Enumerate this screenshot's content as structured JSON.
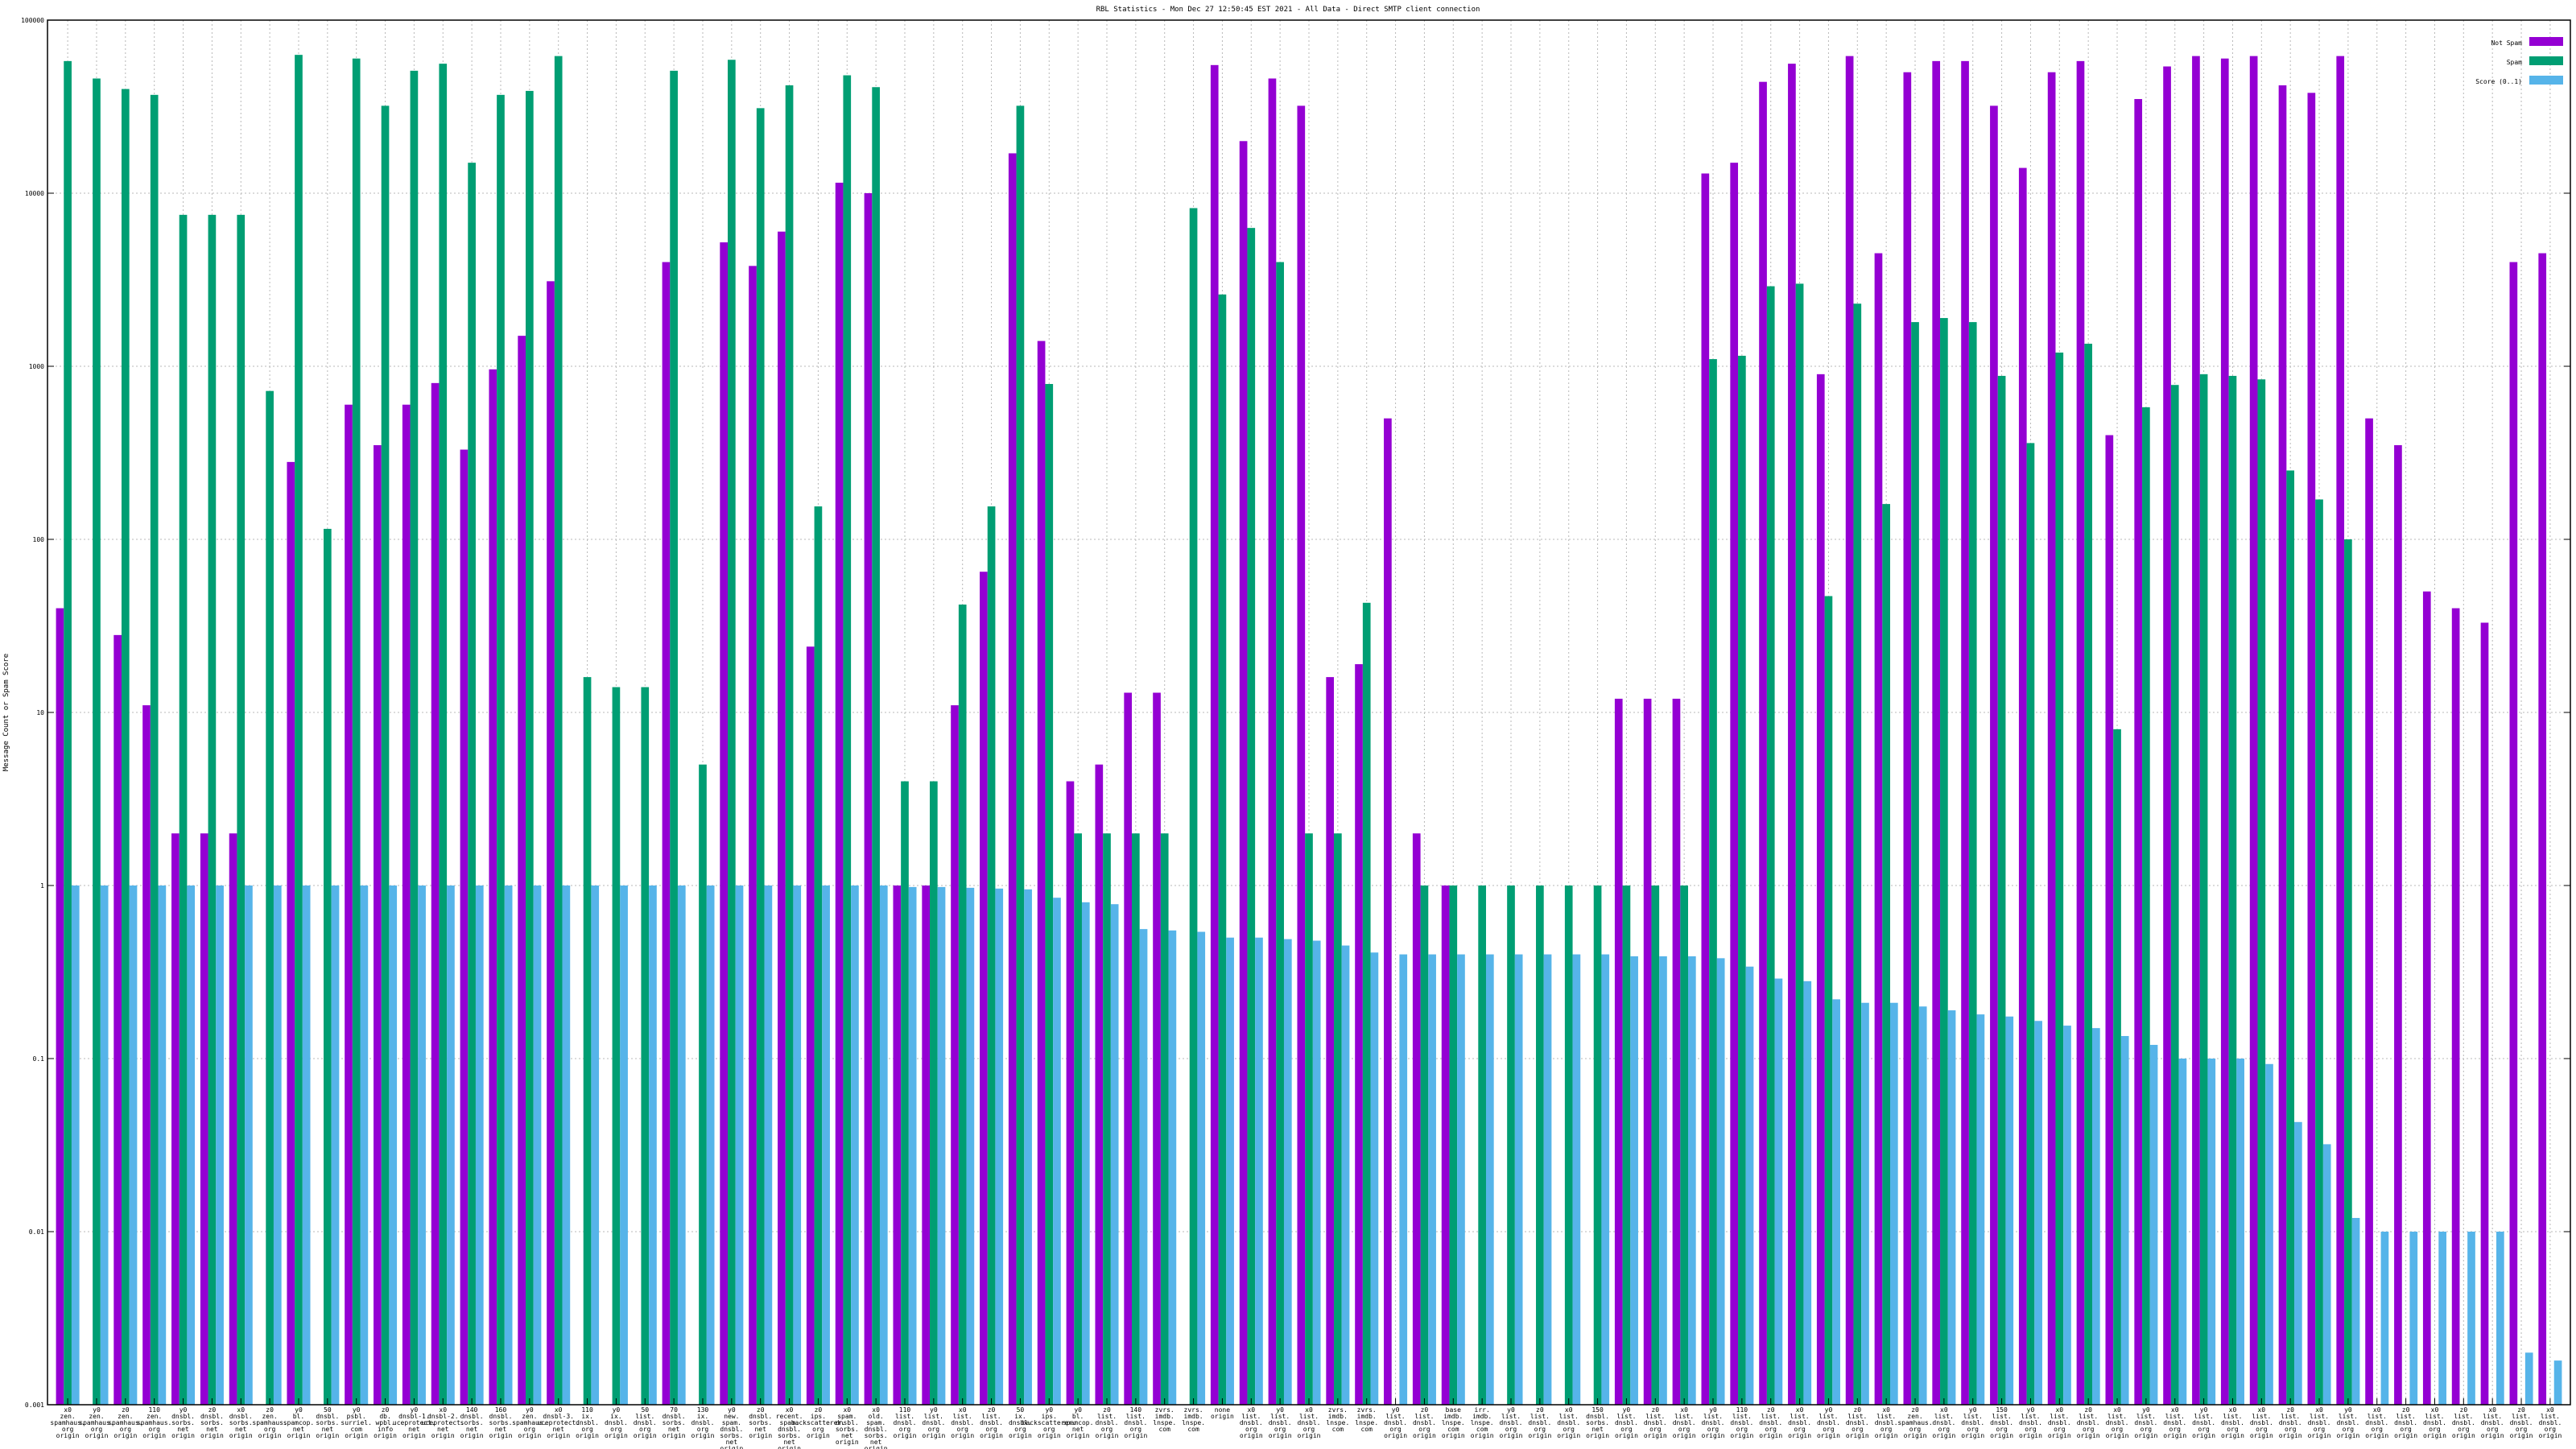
{
  "chart_data": {
    "type": "bar",
    "title": "RBL Statistics - Mon Dec 27 12:50:45 EST 2021 - All Data - Direct SMTP client connection",
    "ylabel": "Message Count or Spam Score",
    "xlabel": "",
    "y_scale": "log",
    "ylim": [
      0.001,
      100000
    ],
    "y_ticks": [
      "0.001",
      "0.01",
      "0.1",
      "1",
      "10",
      "100",
      "1000",
      "10000",
      "100000"
    ],
    "grid": true,
    "legend_position": "top-right",
    "categories": [
      [
        "x0",
        "zen.",
        "spamhaus.",
        "org",
        "origin"
      ],
      [
        "y0",
        "zen.",
        "spamhaus.",
        "org",
        "origin"
      ],
      [
        "z0",
        "zen.",
        "spamhaus.",
        "org",
        "origin"
      ],
      [
        "110",
        "zen.",
        "spamhaus.",
        "org",
        "origin"
      ],
      [
        "y0",
        "dnsbl.",
        "sorbs.",
        "net",
        "origin"
      ],
      [
        "z0",
        "dnsbl.",
        "sorbs.",
        "net",
        "origin"
      ],
      [
        "x0",
        "dnsbl.",
        "sorbs.",
        "net",
        "origin"
      ],
      [
        "z0",
        "zen.",
        "spamhaus.",
        "org",
        "origin"
      ],
      [
        "y0",
        "bl.",
        "spamcop.",
        "net",
        "origin"
      ],
      [
        "50",
        "dnsbl.",
        "sorbs.",
        "net",
        "origin"
      ],
      [
        "y0",
        "psbl.",
        "surriel.",
        "com",
        "origin"
      ],
      [
        "z0",
        "db.",
        "wpbl.",
        "info",
        "origin"
      ],
      [
        "y0",
        "dnsbl-1.",
        "uceprotect.",
        "net",
        "origin"
      ],
      [
        "x0",
        "dnsbl-2.",
        "uceprotect.",
        "net",
        "origin"
      ],
      [
        "140",
        "dnsbl.",
        "sorbs.",
        "net",
        "origin"
      ],
      [
        "160",
        "dnsbl.",
        "sorbs.",
        "net",
        "origin"
      ],
      [
        "y0",
        "zen.",
        "spamhaus.",
        "org",
        "origin"
      ],
      [
        "x0",
        "dnsbl-3.",
        "uceprotect.",
        "net",
        "origin"
      ],
      [
        "110",
        "ix.",
        "dnsbl.",
        "org",
        "origin"
      ],
      [
        "y0",
        "ix.",
        "dnsbl.",
        "org",
        "origin"
      ],
      [
        "50",
        "list.",
        "dnsbl.",
        "org",
        "origin"
      ],
      [
        "70",
        "dnsbl.",
        "sorbs.",
        "net",
        "origin"
      ],
      [
        "130",
        "ix.",
        "dnsbl.",
        "org",
        "origin"
      ],
      [
        "y0",
        "new.",
        "spam.",
        "dnsbl.",
        "sorbs.",
        "net",
        "origin"
      ],
      [
        "z0",
        "dnsbl.",
        "sorbs.",
        "net",
        "origin"
      ],
      [
        "x0",
        "recent.",
        "spam.",
        "dnsbl.",
        "sorbs.",
        "net",
        "origin"
      ],
      [
        "z0",
        "ips.",
        "backscatterer.",
        "org",
        "origin"
      ],
      [
        "x0",
        "spam.",
        "dnsbl.",
        "sorbs.",
        "net",
        "origin"
      ],
      [
        "x0",
        "old.",
        "spam.",
        "dnsbl.",
        "sorbs.",
        "net",
        "origin"
      ],
      [
        "110",
        "list.",
        "dnsbl.",
        "org",
        "origin"
      ],
      [
        "y0",
        "list.",
        "dnsbl.",
        "org",
        "origin"
      ],
      [
        "x0",
        "list.",
        "dnsbl.",
        "org",
        "origin"
      ],
      [
        "z0",
        "list.",
        "dnsbl.",
        "org",
        "origin"
      ],
      [
        "50",
        "ix.",
        "dnsbl.",
        "org",
        "origin"
      ],
      [
        "y0",
        "ips.",
        "backscatterer.",
        "org",
        "origin"
      ],
      [
        "y0",
        "bl.",
        "spamcop.",
        "net",
        "origin"
      ],
      [
        "z0",
        "list.",
        "dnsbl.",
        "org",
        "origin"
      ],
      [
        "140",
        "list.",
        "dnsbl.",
        "org",
        "origin"
      ],
      [
        "zvrs.",
        "imdb.",
        "lnspe.",
        "com"
      ],
      [
        "zvrs.",
        "imdb.",
        "lnspe.",
        "com"
      ],
      [
        "none",
        "origin"
      ],
      [
        "x0",
        "list.",
        "dnsbl.",
        "org",
        "origin"
      ],
      [
        "y0",
        "list.",
        "dnsbl.",
        "org",
        "origin"
      ],
      [
        "x0",
        "list.",
        "dnsbl.",
        "org",
        "origin"
      ],
      [
        "zvrs.",
        "imdb.",
        "lnspe.",
        "com"
      ],
      [
        "zvrs.",
        "imdb.",
        "lnspe.",
        "com"
      ],
      [
        "y0",
        "list.",
        "dnsbl.",
        "org",
        "origin"
      ],
      [
        "z0",
        "list.",
        "dnsbl.",
        "org",
        "origin"
      ],
      [
        "base",
        "imdb.",
        "lnspe.",
        "com",
        "origin"
      ],
      [
        "irr.",
        "imdb.",
        "lnspe.",
        "com",
        "origin"
      ],
      [
        "y0",
        "list.",
        "dnsbl.",
        "org",
        "origin"
      ],
      [
        "z0",
        "list.",
        "dnsbl.",
        "org",
        "origin"
      ],
      [
        "x0",
        "list.",
        "dnsbl.",
        "org",
        "origin"
      ],
      [
        "150",
        "dnsbl.",
        "sorbs.",
        "net",
        "origin"
      ],
      [
        "y0",
        "list.",
        "dnsbl.",
        "org",
        "origin"
      ],
      [
        "z0",
        "list.",
        "dnsbl.",
        "org",
        "origin"
      ],
      [
        "x0",
        "list.",
        "dnsbl.",
        "org",
        "origin"
      ],
      [
        "y0",
        "list.",
        "dnsbl.",
        "org",
        "origin"
      ],
      [
        "110",
        "list.",
        "dnsbl.",
        "org",
        "origin"
      ],
      [
        "z0",
        "list.",
        "dnsbl.",
        "org",
        "origin"
      ],
      [
        "x0",
        "list.",
        "dnsbl.",
        "org",
        "origin"
      ],
      [
        "y0",
        "list.",
        "dnsbl.",
        "org",
        "origin"
      ],
      [
        "z0",
        "list.",
        "dnsbl.",
        "org",
        "origin"
      ],
      [
        "x0",
        "list.",
        "dnsbl.",
        "org",
        "origin"
      ],
      [
        "z0",
        "zen.",
        "spamhaus.",
        "org",
        "origin"
      ],
      [
        "x0",
        "list.",
        "dnsbl.",
        "org",
        "origin"
      ],
      [
        "y0",
        "list.",
        "dnsbl.",
        "org",
        "origin"
      ],
      [
        "150",
        "list.",
        "dnsbl.",
        "org",
        "origin"
      ],
      [
        "y0",
        "list.",
        "dnsbl.",
        "org",
        "origin"
      ],
      [
        "x0",
        "list.",
        "dnsbl.",
        "org",
        "origin"
      ],
      [
        "z0",
        "list.",
        "dnsbl.",
        "org",
        "origin"
      ],
      [
        "x0",
        "list.",
        "dnsbl.",
        "org",
        "origin"
      ],
      [
        "y0",
        "list.",
        "dnsbl.",
        "org",
        "origin"
      ],
      [
        "x0",
        "list.",
        "dnsbl.",
        "org",
        "origin"
      ],
      [
        "y0",
        "list.",
        "dnsbl.",
        "org",
        "origin"
      ],
      [
        "x0",
        "list.",
        "dnsbl.",
        "org",
        "origin"
      ],
      [
        "x0",
        "list.",
        "dnsbl.",
        "org",
        "origin"
      ],
      [
        "z0",
        "list.",
        "dnsbl.",
        "org",
        "origin"
      ],
      [
        "x0",
        "list.",
        "dnsbl.",
        "org",
        "origin"
      ],
      [
        "y0",
        "list.",
        "dnsbl.",
        "org",
        "origin"
      ],
      [
        "x0",
        "list.",
        "dnsbl.",
        "org",
        "origin"
      ],
      [
        "z0",
        "list.",
        "dnsbl.",
        "org",
        "origin"
      ],
      [
        "x0",
        "list.",
        "dnsbl.",
        "org",
        "origin"
      ],
      [
        "z0",
        "list.",
        "dnsbl.",
        "org",
        "origin"
      ],
      [
        "x0",
        "list.",
        "dnsbl.",
        "org",
        "origin"
      ],
      [
        "z0",
        "list.",
        "dnsbl.",
        "org",
        "origin"
      ],
      [
        "x0",
        "list.",
        "dnsbl.",
        "org",
        "origin"
      ]
    ],
    "series": [
      {
        "name": "Not Spam",
        "color": "#9400d3",
        "values": [
          40,
          0,
          28,
          11,
          2,
          2,
          2,
          0,
          280,
          0,
          600,
          350,
          600,
          800,
          330,
          960,
          1500,
          3100,
          0,
          0,
          0,
          4000,
          0,
          5200,
          3800,
          6000,
          24,
          11500,
          10000,
          1,
          1,
          11,
          65,
          17000,
          1400,
          4,
          5,
          13,
          13,
          0,
          55000,
          20000,
          46000,
          32000,
          16,
          19,
          500,
          2,
          1,
          0,
          0,
          0,
          0,
          0,
          12,
          12,
          12,
          13000,
          15000,
          44000,
          56000,
          900,
          62000,
          4500,
          50000,
          58000,
          58000,
          32000,
          14000,
          50000,
          58000,
          400,
          35000,
          54000,
          62000,
          60000,
          62000,
          42000,
          38000,
          62000,
          500,
          350,
          50,
          40,
          33,
          4000,
          4500
        ]
      },
      {
        "name": "Spam",
        "color": "#009e73",
        "values": [
          58000,
          46000,
          40000,
          37000,
          7500,
          7500,
          7500,
          720,
          63000,
          115,
          60000,
          32000,
          51000,
          56000,
          15000,
          37000,
          39000,
          62000,
          16,
          14,
          14,
          51000,
          5,
          59000,
          31000,
          42000,
          155,
          48000,
          41000,
          4,
          4,
          42,
          155,
          32000,
          790,
          2,
          2,
          2,
          2,
          8200,
          2600,
          6300,
          4000,
          2,
          2,
          43,
          0,
          1,
          1,
          1,
          1,
          1,
          1,
          1,
          1,
          1,
          1,
          1100,
          1150,
          2900,
          3000,
          47,
          2300,
          160,
          1800,
          1900,
          1800,
          880,
          360,
          1200,
          1350,
          8,
          580,
          780,
          900,
          880,
          840,
          250,
          170,
          100,
          0,
          0,
          0,
          0,
          0,
          0,
          0
        ]
      },
      {
        "name": "Score (0..1)",
        "color": "#56b4e9",
        "values": [
          1,
          1,
          1,
          1,
          1,
          1,
          1,
          1,
          1,
          1,
          1,
          1,
          1,
          1,
          1,
          1,
          1,
          1,
          1,
          1,
          1,
          1,
          1,
          1,
          1,
          1,
          1,
          1,
          1,
          0.98,
          0.98,
          0.97,
          0.96,
          0.95,
          0.85,
          0.8,
          0.78,
          0.56,
          0.55,
          0.54,
          0.5,
          0.5,
          0.49,
          0.48,
          0.45,
          0.41,
          0.4,
          0.4,
          0.4,
          0.4,
          0.4,
          0.4,
          0.4,
          0.4,
          0.39,
          0.39,
          0.39,
          0.38,
          0.34,
          0.29,
          0.28,
          0.22,
          0.21,
          0.21,
          0.2,
          0.19,
          0.18,
          0.175,
          0.165,
          0.155,
          0.15,
          0.135,
          0.12,
          0.1,
          0.1,
          0.1,
          0.093,
          0.043,
          0.032,
          0.012,
          0.01,
          0.01,
          0.01,
          0.01,
          0.01,
          0.002,
          0.0018
        ]
      }
    ]
  }
}
